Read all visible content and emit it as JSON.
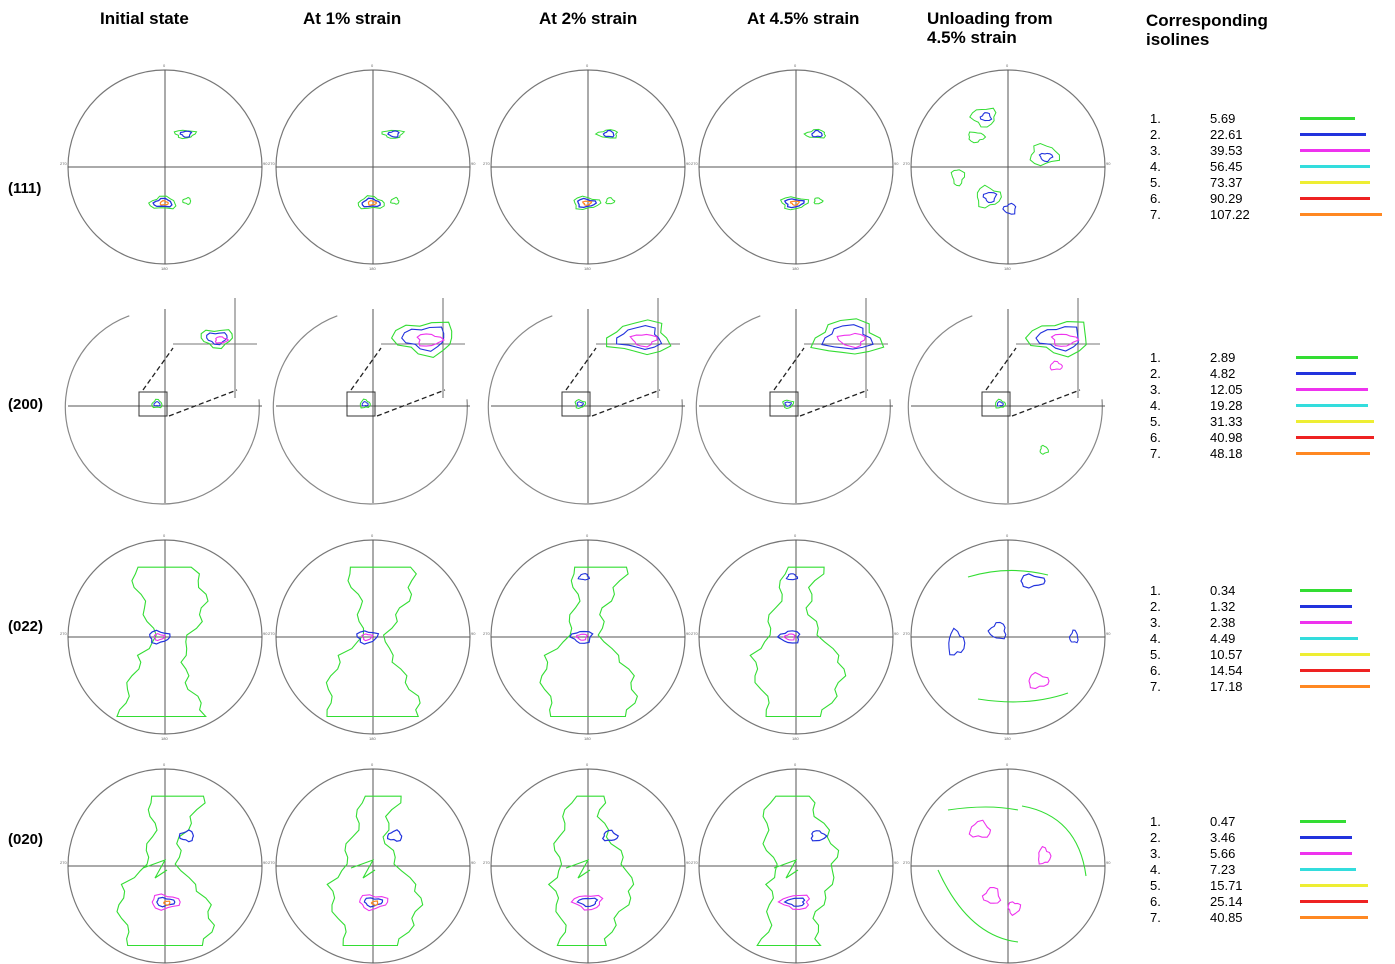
{
  "columns": [
    {
      "title": "Initial state"
    },
    {
      "title": "At 1% strain"
    },
    {
      "title": "At 2% strain"
    },
    {
      "title": "At 4.5% strain"
    },
    {
      "title": "Unloading from\n4.5% strain"
    }
  ],
  "legend_header": "Corresponding\nisolines",
  "axis_labels": {
    "top": "0",
    "left": "270",
    "right": "90",
    "bottom": "180"
  },
  "rows": [
    {
      "label": "(111)",
      "isolines": [
        {
          "n": "1.",
          "value": "5.69"
        },
        {
          "n": "2.",
          "value": "22.61"
        },
        {
          "n": "3.",
          "value": "39.53"
        },
        {
          "n": "4.",
          "value": "56.45"
        },
        {
          "n": "5.",
          "value": "73.37"
        },
        {
          "n": "6.",
          "value": "90.29"
        },
        {
          "n": "7.",
          "value": "107.22"
        }
      ]
    },
    {
      "label": "(200)",
      "isolines": [
        {
          "n": "1.",
          "value": "2.89"
        },
        {
          "n": "2.",
          "value": "4.82"
        },
        {
          "n": "3.",
          "value": "12.05"
        },
        {
          "n": "4.",
          "value": "19.28"
        },
        {
          "n": "5.",
          "value": "31.33"
        },
        {
          "n": "6.",
          "value": "40.98"
        },
        {
          "n": "7.",
          "value": "48.18"
        }
      ]
    },
    {
      "label": "(022)",
      "isolines": [
        {
          "n": "1.",
          "value": "0.34"
        },
        {
          "n": "2.",
          "value": "1.32"
        },
        {
          "n": "3.",
          "value": "2.38"
        },
        {
          "n": "4.",
          "value": "4.49"
        },
        {
          "n": "5.",
          "value": "10.57"
        },
        {
          "n": "6.",
          "value": "14.54"
        },
        {
          "n": "7.",
          "value": "17.18"
        }
      ]
    },
    {
      "label": "(020)",
      "isolines": [
        {
          "n": "1.",
          "value": "0.47"
        },
        {
          "n": "2.",
          "value": "3.46"
        },
        {
          "n": "3.",
          "value": "5.66"
        },
        {
          "n": "4.",
          "value": "7.23"
        },
        {
          "n": "5.",
          "value": "15.71"
        },
        {
          "n": "6.",
          "value": "25.14"
        },
        {
          "n": "7.",
          "value": "40.85"
        }
      ]
    }
  ],
  "isoline_colors": [
    "#33dd33",
    "#2233dd",
    "#ee33ee",
    "#33dddd",
    "#eeee33",
    "#ee2222",
    "#ff8822"
  ]
}
